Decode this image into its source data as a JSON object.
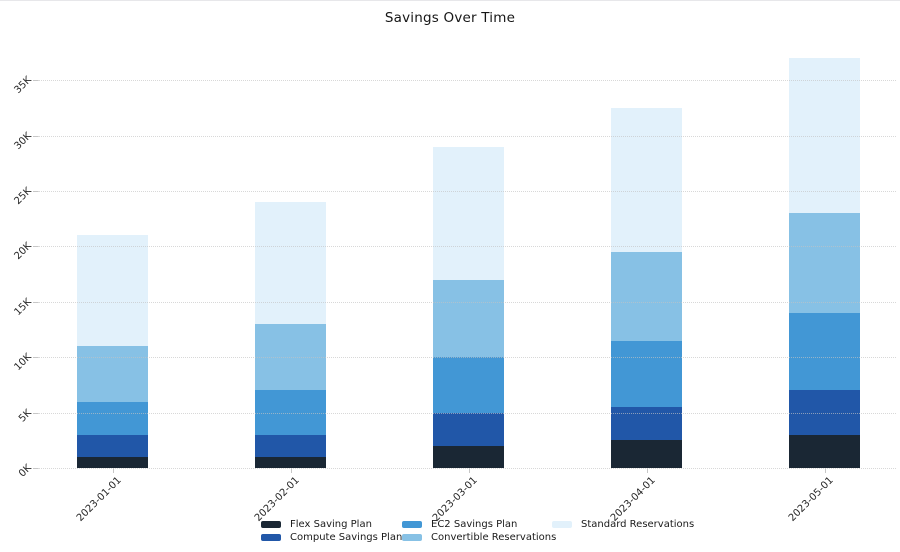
{
  "title": "Savings Over Time",
  "chart_data": {
    "type": "bar",
    "stacked": true,
    "title": "Savings Over Time",
    "categories": [
      "2023-01-01",
      "2023-02-01",
      "2023-03-01",
      "2023-04-01",
      "2023-05-01"
    ],
    "series": [
      {
        "name": "Flex Saving Plan",
        "color": "#1a2734",
        "values": [
          1000,
          1000,
          2000,
          2500,
          3000
        ]
      },
      {
        "name": "Compute Savings Plan",
        "color": "#2157a8",
        "values": [
          2000,
          2000,
          3000,
          3000,
          4000
        ]
      },
      {
        "name": "EC2 Savings Plan",
        "color": "#4297d5",
        "values": [
          3000,
          4000,
          5000,
          6000,
          7000
        ]
      },
      {
        "name": "Convertible Reservations",
        "color": "#87c1e5",
        "values": [
          5000,
          6000,
          7000,
          8000,
          9000
        ]
      },
      {
        "name": "Standard Reservations",
        "color": "#e2f1fb",
        "values": [
          10000,
          11000,
          12000,
          13000,
          14000
        ]
      }
    ],
    "stack_totals": [
      21000,
      24000,
      29000,
      32500,
      37000
    ],
    "xlabel": "",
    "ylabel": "",
    "ylim": [
      0,
      37500
    ],
    "yticks": [
      {
        "value": 0,
        "label": "0K"
      },
      {
        "value": 5000,
        "label": "5K"
      },
      {
        "value": 10000,
        "label": "10K"
      },
      {
        "value": 15000,
        "label": "15K"
      },
      {
        "value": 20000,
        "label": "20K"
      },
      {
        "value": 25000,
        "label": "25K"
      },
      {
        "value": 30000,
        "label": "30K"
      },
      {
        "value": 35000,
        "label": "35K"
      }
    ],
    "grid": "horizontal-dotted",
    "legend_position": "bottom",
    "tick_rotation": 45
  }
}
